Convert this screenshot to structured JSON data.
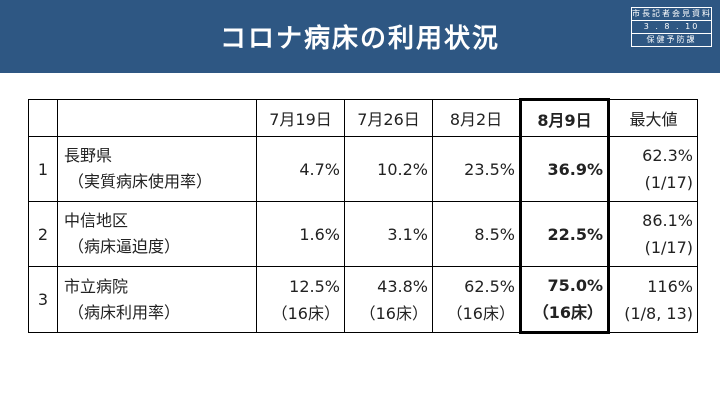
{
  "header": {
    "title": "コロナ病床の利用状況",
    "stamp": [
      "市長記者会見資料",
      "3 . 8 . 10",
      "保健予防課"
    ]
  },
  "table": {
    "columns": [
      "7月19日",
      "7月26日",
      "8月2日",
      "8月9日",
      "最大値"
    ],
    "rows": [
      {
        "no": "1",
        "name": "長野県",
        "sub": "（実質病床使用率）",
        "values": [
          "4.7%",
          "10.2%",
          "23.5%",
          "36.9%"
        ],
        "max": "62.3%",
        "max_date": "(1/17)"
      },
      {
        "no": "2",
        "name": "中信地区",
        "sub": "（病床逼迫度）",
        "values": [
          "1.6%",
          "3.1%",
          "8.5%",
          "22.5%"
        ],
        "max": "86.1%",
        "max_date": "(1/17)"
      },
      {
        "no": "3",
        "name": "市立病院",
        "sub": "（病床利用率）",
        "values": [
          "12.5%",
          "43.8%",
          "62.5%",
          "75.0%"
        ],
        "beds": [
          "（16床）",
          "（16床）",
          "（16床）",
          "（16床）"
        ],
        "max": "116%",
        "max_date": "(1/8, 13)"
      }
    ]
  }
}
